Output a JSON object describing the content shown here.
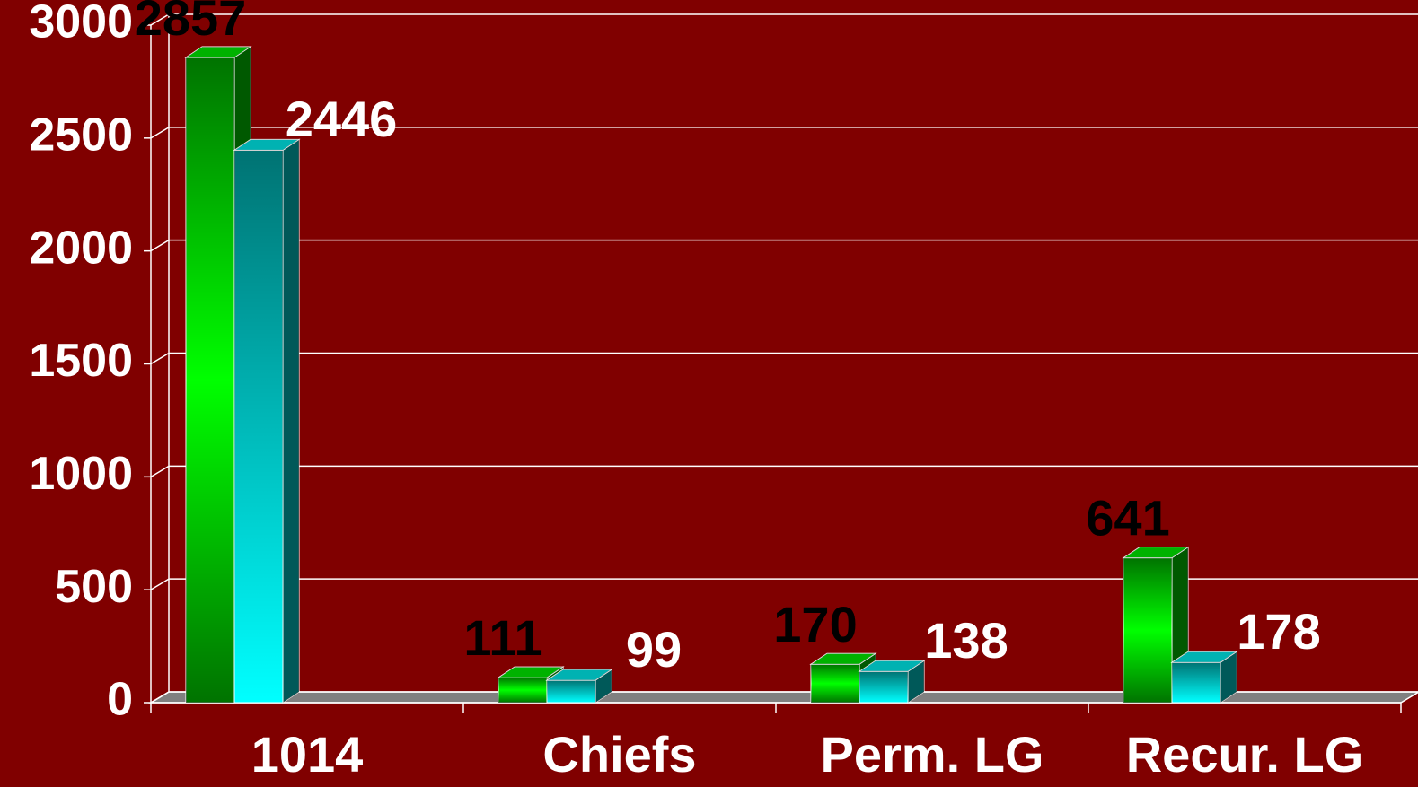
{
  "chart_data": {
    "type": "bar3d",
    "categories": [
      "1014",
      "Chiefs",
      "Perm. LG",
      "Recur. LG"
    ],
    "series": [
      {
        "color": "#00ff00",
        "label_color": "#000000",
        "values": [
          2857,
          111,
          170,
          641
        ]
      },
      {
        "color": "#00ffff",
        "label_color": "#ffffff",
        "values": [
          2446,
          99,
          138,
          178
        ]
      }
    ],
    "ylim": [
      0,
      3000
    ],
    "yticks": [
      0,
      500,
      1000,
      1500,
      2000,
      2500,
      3000
    ],
    "grid": true
  }
}
